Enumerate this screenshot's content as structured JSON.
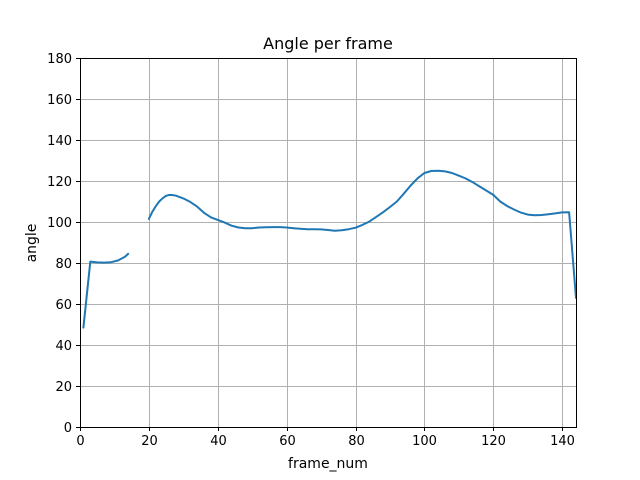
{
  "chart_data": {
    "type": "line",
    "title": "Angle per frame",
    "xlabel": "frame_num",
    "ylabel": "angle",
    "xlim": [
      0,
      144
    ],
    "ylim": [
      0,
      180
    ],
    "xticks": [
      0,
      20,
      40,
      60,
      80,
      100,
      120,
      140
    ],
    "yticks": [
      0,
      20,
      40,
      60,
      80,
      100,
      120,
      140,
      160,
      180
    ],
    "grid": true,
    "series": [
      {
        "name": "angle",
        "color": "#1f77b4",
        "segments": [
          {
            "x": [
              1,
              3,
              5,
              7,
              9,
              11,
              13,
              14
            ],
            "y": [
              48.5,
              80.7,
              80.3,
              80.2,
              80.4,
              81.2,
              83.0,
              84.5
            ]
          },
          {
            "x": [
              20,
              21,
              22,
              23,
              24,
              25,
              26,
              27,
              28,
              29,
              30,
              32,
              34,
              36,
              38,
              40,
              42,
              44,
              46,
              48,
              50,
              52,
              54,
              56,
              58,
              60,
              62,
              64,
              66,
              68,
              70,
              72,
              74,
              76,
              78,
              80,
              82,
              84,
              86,
              88,
              90,
              92,
              94,
              96,
              98,
              100,
              102,
              104,
              106,
              108,
              110,
              112,
              114,
              116,
              118,
              120,
              122,
              124,
              126,
              128,
              130,
              132,
              134,
              136,
              138,
              140,
              142,
              144
            ],
            "y": [
              101.5,
              105.0,
              107.7,
              110.0,
              111.6,
              112.8,
              113.2,
              113.1,
              112.8,
              112.1,
              111.5,
              109.8,
              107.5,
              104.5,
              102.3,
              101.0,
              99.7,
              98.2,
              97.3,
              97.0,
              97.0,
              97.3,
              97.4,
              97.5,
              97.5,
              97.3,
              97.0,
              96.7,
              96.5,
              96.5,
              96.4,
              96.1,
              95.7,
              96.0,
              96.5,
              97.2,
              98.6,
              100.2,
              102.5,
              104.8,
              107.3,
              110.0,
              113.8,
              117.8,
              121.3,
              123.9,
              124.9,
              125.0,
              124.7,
              123.9,
              122.6,
              121.2,
              119.4,
              117.3,
              115.3,
              113.2,
              110.0,
              107.8,
              106.1,
              104.6,
              103.6,
              103.3,
              103.4,
              103.8,
              104.2,
              104.7,
              104.8,
              63.0
            ]
          }
        ]
      }
    ]
  }
}
